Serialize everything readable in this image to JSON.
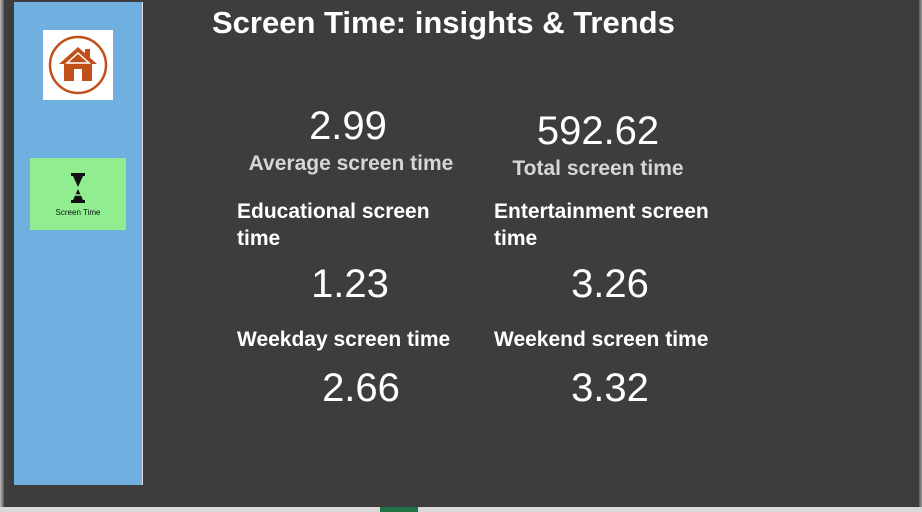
{
  "title": "Screen Time: insights & Trends",
  "sidebar": {
    "screen_time_label": "Screen Time"
  },
  "metrics": {
    "average": {
      "value": "2.99",
      "label": "Average screen time"
    },
    "total": {
      "value": "592.62",
      "label": "Total screen time"
    },
    "educational": {
      "label": "Educational screen time",
      "value": "1.23"
    },
    "entertainment": {
      "label": "Entertainment screen time",
      "value": "3.26"
    },
    "weekday": {
      "label": "Weekday screen time",
      "value": "2.66"
    },
    "weekend": {
      "label": "Weekend screen time",
      "value": "3.32"
    }
  },
  "icons": {
    "home": "home-icon",
    "screen_time": "hourglass-icon"
  },
  "colors": {
    "background": "#3d3d3d",
    "sidebar": "#6fb0e0",
    "screen_time_button": "#90ee90",
    "home_icon": "#c0501a"
  }
}
